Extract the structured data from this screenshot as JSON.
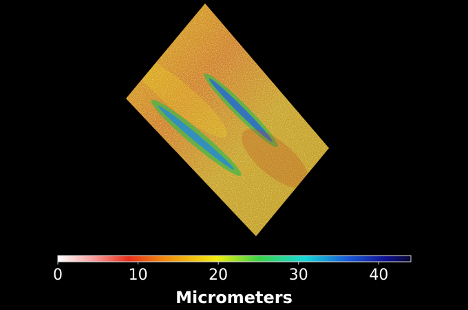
{
  "colorbar": {
    "label": "Micrometers",
    "lim": [
      0,
      44
    ],
    "ticks": [
      0,
      10,
      20,
      30,
      40
    ]
  }
}
